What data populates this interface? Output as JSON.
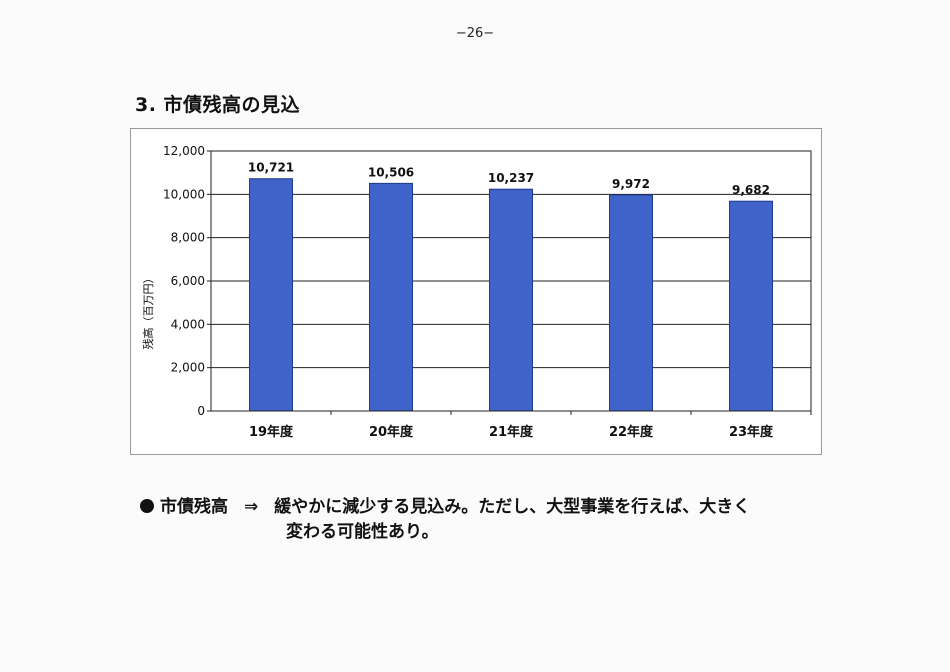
{
  "page": {
    "number": "−26−"
  },
  "section": {
    "title": "3. 市債残高の見込"
  },
  "chart_data": {
    "type": "bar",
    "title": "",
    "xlabel": "",
    "ylabel": "残高（百万円）",
    "categories": [
      "19年度",
      "20年度",
      "21年度",
      "22年度",
      "23年度"
    ],
    "values": [
      10721,
      10506,
      10237,
      9972,
      9682
    ],
    "value_labels": [
      "10,721",
      "10,506",
      "10,237",
      "9,972",
      "9,682"
    ],
    "ylim": [
      0,
      12000
    ],
    "yticks": [
      0,
      2000,
      4000,
      6000,
      8000,
      10000,
      12000
    ],
    "ytick_labels": [
      "0",
      "2,000",
      "4,000",
      "6,000",
      "8,000",
      "10,000",
      "12,000"
    ],
    "grid": true,
    "legend": "none",
    "bar_color": "#3f63c8",
    "bar_edge_color": "#1f3a8a"
  },
  "note": {
    "term": "市債残高",
    "arrow": "⇒",
    "line1": "緩やかに減少する見込み。ただし、大型事業を行えば、大きく",
    "line2": "変わる可能性あり。"
  }
}
